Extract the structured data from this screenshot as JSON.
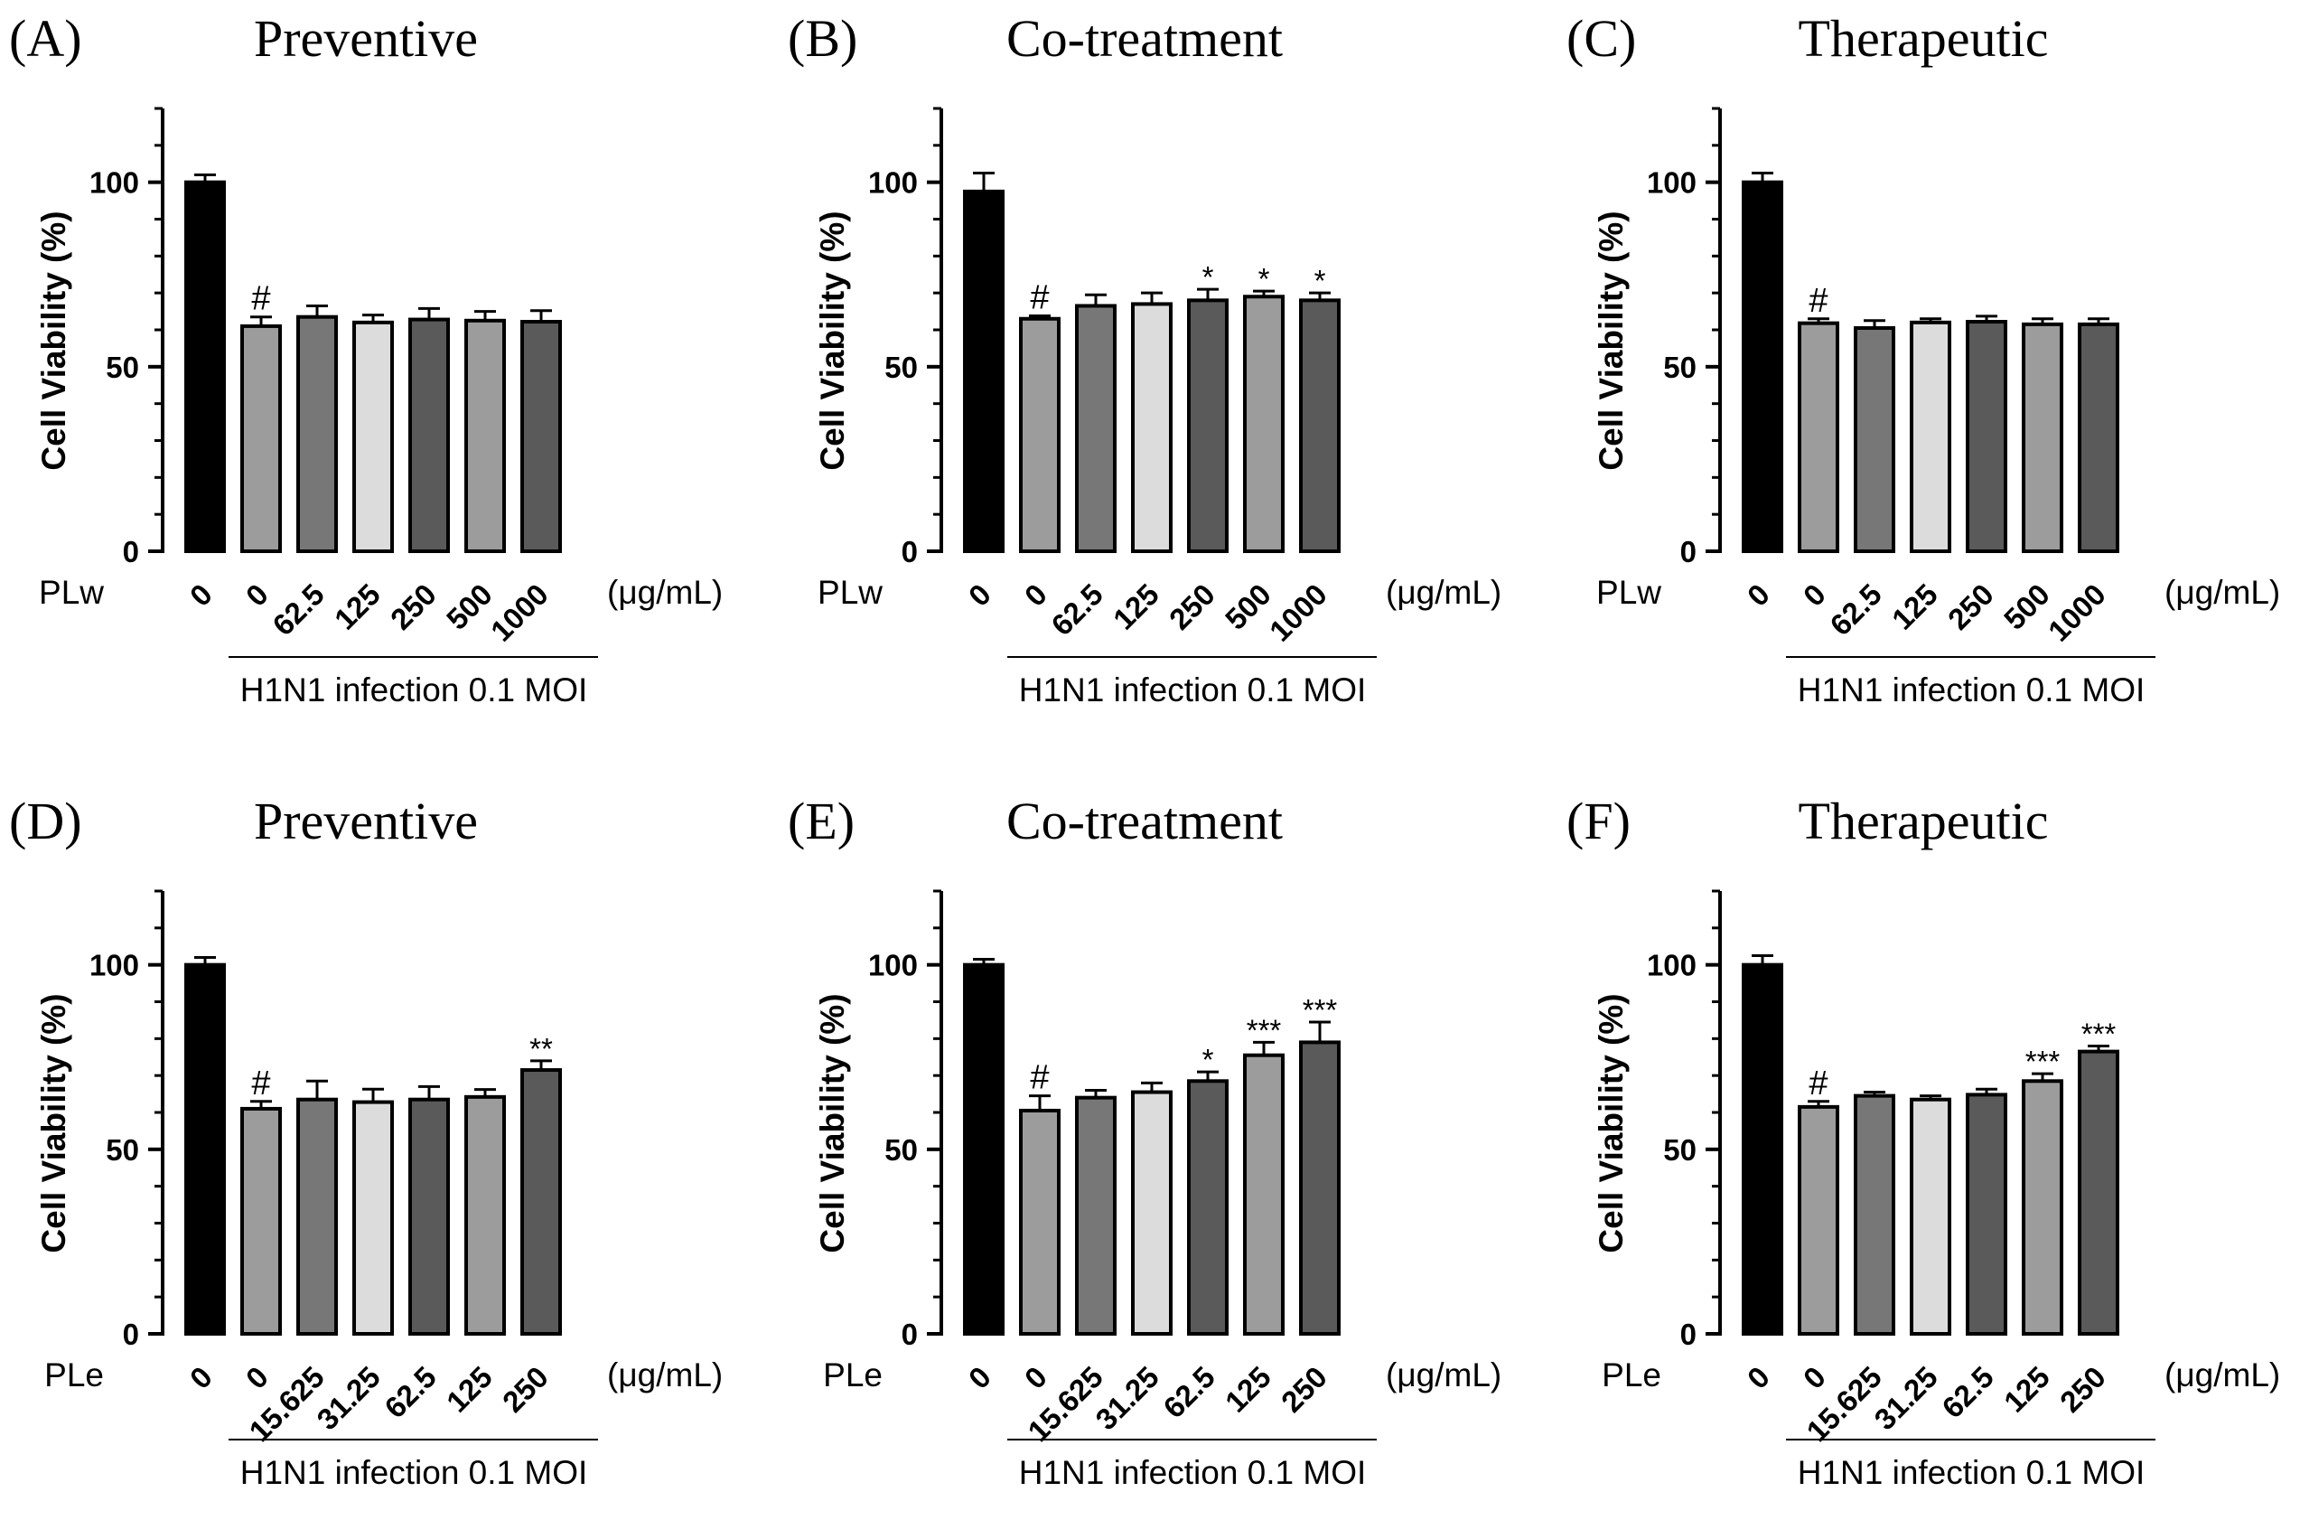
{
  "colors": {
    "control": "#000000",
    "infected": "#9c9c9c",
    "dose_dark_gray": "#777777",
    "dose_light": "#dcdcdc",
    "dose_darker": "#5a5a5a",
    "axis": "#000000"
  },
  "chart_data": [
    {
      "type": "bar",
      "panel": "(A)",
      "title": "Preventive",
      "ylabel": "Cell Viability (%)",
      "ylim": [
        0,
        120
      ],
      "yticks": [
        0,
        50,
        100
      ],
      "extract_label": "PLw",
      "unit_label": "(μg/mL)",
      "group_label": "H1N1 infection 0.1 MOI",
      "categories": [
        "0",
        "0",
        "62.5",
        "125",
        "250",
        "500",
        "1000"
      ],
      "values": [
        100,
        61,
        63.5,
        62,
        62.8,
        62.5,
        62.2
      ],
      "errors": [
        2,
        2.5,
        3,
        2,
        3,
        2.5,
        3
      ],
      "annotations": [
        "",
        "#",
        "",
        "",
        "",
        "",
        ""
      ],
      "fills": [
        "control",
        "infected",
        "dose_dark_gray",
        "dose_light",
        "dose_darker",
        "infected",
        "dose_darker"
      ]
    },
    {
      "type": "bar",
      "panel": "(B)",
      "title": "Co-treatment",
      "ylabel": "Cell Viability (%)",
      "ylim": [
        0,
        120
      ],
      "yticks": [
        0,
        50,
        100
      ],
      "extract_label": "PLw",
      "unit_label": "(μg/mL)",
      "group_label": "H1N1 infection 0.1 MOI",
      "categories": [
        "0",
        "0",
        "62.5",
        "125",
        "250",
        "500",
        "1000"
      ],
      "values": [
        97.5,
        63,
        66.5,
        67,
        68,
        69,
        68
      ],
      "errors": [
        5,
        0.8,
        3,
        3,
        3,
        1.5,
        2
      ],
      "annotations": [
        "",
        "#",
        "",
        "",
        "*",
        "*",
        "*"
      ],
      "fills": [
        "control",
        "infected",
        "dose_dark_gray",
        "dose_light",
        "dose_darker",
        "infected",
        "dose_darker"
      ]
    },
    {
      "type": "bar",
      "panel": "(C)",
      "title": "Therapeutic",
      "ylabel": "Cell Viability (%)",
      "ylim": [
        0,
        120
      ],
      "yticks": [
        0,
        50,
        100
      ],
      "extract_label": "PLw",
      "unit_label": "(μg/mL)",
      "group_label": "H1N1 infection 0.1 MOI",
      "categories": [
        "0",
        "0",
        "62.5",
        "125",
        "250",
        "500",
        "1000"
      ],
      "values": [
        100,
        61.8,
        60.5,
        62,
        62.2,
        61.5,
        61.5
      ],
      "errors": [
        2.5,
        1.2,
        2,
        1,
        1.5,
        1.5,
        1.5
      ],
      "annotations": [
        "",
        "#",
        "",
        "",
        "",
        "",
        ""
      ],
      "fills": [
        "control",
        "infected",
        "dose_dark_gray",
        "dose_light",
        "dose_darker",
        "infected",
        "dose_darker"
      ]
    },
    {
      "type": "bar",
      "panel": "(D)",
      "title": "Preventive",
      "ylabel": "Cell Viability (%)",
      "ylim": [
        0,
        120
      ],
      "yticks": [
        0,
        50,
        100
      ],
      "extract_label": "PLe",
      "unit_label": "(μg/mL)",
      "group_label": "H1N1 infection 0.1 MOI",
      "categories": [
        "0",
        "0",
        "15.625",
        "31.25",
        "62.5",
        "125",
        "250"
      ],
      "values": [
        100,
        61,
        63.5,
        62.8,
        63.5,
        64.2,
        71.5
      ],
      "errors": [
        2,
        2,
        5,
        3.5,
        3.5,
        2,
        2.5
      ],
      "annotations": [
        "",
        "#",
        "",
        "",
        "",
        "",
        "**"
      ],
      "fills": [
        "control",
        "infected",
        "dose_dark_gray",
        "dose_light",
        "dose_darker",
        "infected",
        "dose_darker"
      ]
    },
    {
      "type": "bar",
      "panel": "(E)",
      "title": "Co-treatment",
      "ylabel": "Cell Viability (%)",
      "ylim": [
        0,
        120
      ],
      "yticks": [
        0,
        50,
        100
      ],
      "extract_label": "PLe",
      "unit_label": "(μg/mL)",
      "group_label": "H1N1 infection 0.1 MOI",
      "categories": [
        "0",
        "0",
        "15.625",
        "31.25",
        "62.5",
        "125",
        "250"
      ],
      "values": [
        100,
        60.5,
        64,
        65.5,
        68.5,
        75.5,
        79
      ],
      "errors": [
        1.5,
        4,
        2,
        2.5,
        2.5,
        3.5,
        5.5
      ],
      "annotations": [
        "",
        "#",
        "",
        "",
        "*",
        "***",
        "***"
      ],
      "fills": [
        "control",
        "infected",
        "dose_dark_gray",
        "dose_light",
        "dose_darker",
        "infected",
        "dose_darker"
      ]
    },
    {
      "type": "bar",
      "panel": "(F)",
      "title": "Therapeutic",
      "ylabel": "Cell Viability (%)",
      "ylim": [
        0,
        120
      ],
      "yticks": [
        0,
        50,
        100
      ],
      "extract_label": "PLe",
      "unit_label": "(μg/mL)",
      "group_label": "H1N1 infection 0.1 MOI",
      "categories": [
        "0",
        "0",
        "15.625",
        "31.25",
        "62.5",
        "125",
        "250"
      ],
      "values": [
        100,
        61.5,
        64.5,
        63.5,
        64.8,
        68.5,
        76.5
      ],
      "errors": [
        2.5,
        1.5,
        1,
        1,
        1.5,
        2,
        1.5
      ],
      "annotations": [
        "",
        "#",
        "",
        "",
        "",
        "***",
        "***"
      ],
      "fills": [
        "control",
        "infected",
        "dose_dark_gray",
        "dose_light",
        "dose_darker",
        "infected",
        "dose_darker"
      ]
    }
  ]
}
